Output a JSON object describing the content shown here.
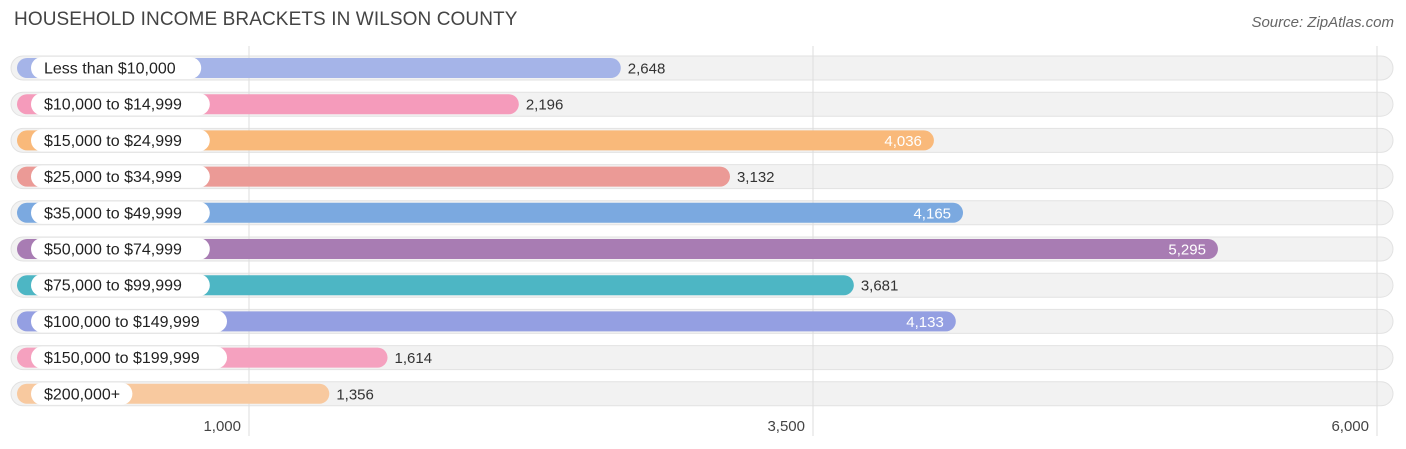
{
  "header": {
    "title": "HOUSEHOLD INCOME BRACKETS IN WILSON COUNTY",
    "source": "Source: ZipAtlas.com"
  },
  "chart_data": {
    "type": "bar",
    "orientation": "horizontal",
    "title": "HOUSEHOLD INCOME BRACKETS IN WILSON COUNTY",
    "categories": [
      "Less than $10,000",
      "$10,000 to $14,999",
      "$15,000 to $24,999",
      "$25,000 to $34,999",
      "$35,000 to $49,999",
      "$50,000 to $74,999",
      "$75,000 to $99,999",
      "$100,000 to $149,999",
      "$150,000 to $199,999",
      "$200,000+"
    ],
    "values": [
      2648,
      2196,
      4036,
      3132,
      4165,
      5295,
      3681,
      4133,
      1614,
      1356
    ],
    "value_labels": [
      "2,648",
      "2,196",
      "4,036",
      "3,132",
      "4,165",
      "5,295",
      "3,681",
      "4,133",
      "1,614",
      "1,356"
    ],
    "colors": [
      "#a5b4e8",
      "#f59bbb",
      "#f9b97a",
      "#eb9a96",
      "#7ba9e0",
      "#a87cb3",
      "#4db6c4",
      "#949fe2",
      "#f5a1bf",
      "#f8c99f"
    ],
    "label_inside": [
      false,
      false,
      true,
      false,
      true,
      true,
      false,
      true,
      false,
      false
    ],
    "xticks": [
      1000,
      3500,
      6000
    ],
    "xtick_labels": [
      "1,000",
      "3,500",
      "6,000"
    ],
    "xlim": [
      0,
      6000
    ],
    "grid": true,
    "xlabel": "",
    "ylabel": ""
  }
}
